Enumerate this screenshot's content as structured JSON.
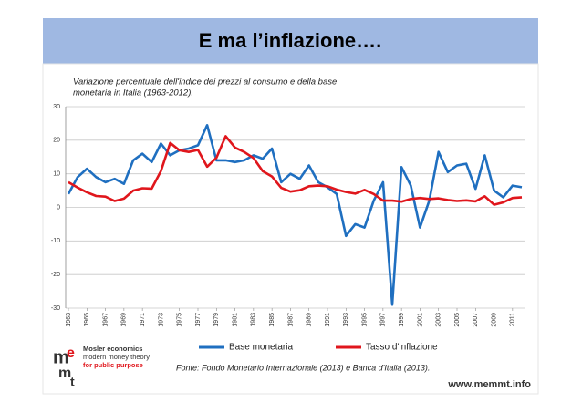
{
  "header": {
    "title": "E ma l’inflazione…."
  },
  "chart_data": {
    "type": "line",
    "title": [
      "Variazione percentuale dell'indice dei prezzi al consumo e della base",
      "monetaria in Italia (1963-2012)."
    ],
    "x": [
      1963,
      1964,
      1965,
      1966,
      1967,
      1968,
      1969,
      1970,
      1971,
      1972,
      1973,
      1974,
      1975,
      1976,
      1977,
      1978,
      1979,
      1980,
      1981,
      1982,
      1983,
      1984,
      1985,
      1986,
      1987,
      1988,
      1989,
      1990,
      1991,
      1992,
      1993,
      1994,
      1995,
      1996,
      1997,
      1998,
      1999,
      2000,
      2001,
      2002,
      2003,
      2004,
      2005,
      2006,
      2007,
      2008,
      2009,
      2010,
      2011,
      2012
    ],
    "series": [
      {
        "name": "Base monetaria",
        "color": "#1f6fc0",
        "values": [
          4,
          9,
          11.5,
          9,
          7.5,
          8.5,
          7,
          14,
          16,
          13.5,
          19,
          15.5,
          17,
          17.5,
          18.5,
          24.5,
          14,
          14,
          13.5,
          14,
          15.5,
          14.5,
          17.5,
          7.5,
          10,
          8.5,
          12.5,
          7.5,
          6,
          4,
          -8.5,
          -5,
          -6,
          2,
          7.5,
          -29,
          12,
          6.5,
          -6,
          2,
          16.5,
          10.5,
          12.5,
          13,
          5.5,
          15.5,
          5,
          3,
          6.5,
          6
        ]
      },
      {
        "name": "Tasso d'inflazione",
        "color": "#e0161c",
        "values": [
          7.5,
          5.9,
          4.5,
          3.4,
          3.2,
          1.9,
          2.6,
          5,
          5.7,
          5.6,
          10.8,
          19.2,
          17,
          16.5,
          17.1,
          12.1,
          14.8,
          21.2,
          17.8,
          16.5,
          14.7,
          10.8,
          9.2,
          5.8,
          4.7,
          5.1,
          6.3,
          6.5,
          6.3,
          5.3,
          4.6,
          4.1,
          5.2,
          4,
          2,
          2,
          1.7,
          2.5,
          2.8,
          2.5,
          2.7,
          2.2,
          1.9,
          2.1,
          1.8,
          3.3,
          0.8,
          1.5,
          2.8,
          3
        ]
      }
    ],
    "xlim": [
      1963,
      2012
    ],
    "xticks": [
      1963,
      1965,
      1967,
      1969,
      1971,
      1973,
      1975,
      1977,
      1979,
      1981,
      1983,
      1985,
      1987,
      1989,
      1991,
      1993,
      1995,
      1997,
      1999,
      2001,
      2003,
      2005,
      2007,
      2009,
      2011
    ],
    "ylim": [
      -30,
      30
    ],
    "yticks": [
      -30,
      -20,
      -10,
      0,
      10,
      20,
      30
    ],
    "grid": true,
    "source": "Fonte: Fondo Monetario Internazionale (2013) e Banca d'Italia (2013)."
  },
  "footer": {
    "logo_letters": [
      "m",
      "e",
      "m",
      "t"
    ],
    "logo_lines": [
      "Mosler economics",
      "modern money theory",
      "for public purpose"
    ],
    "url": "www.memmt.info"
  }
}
